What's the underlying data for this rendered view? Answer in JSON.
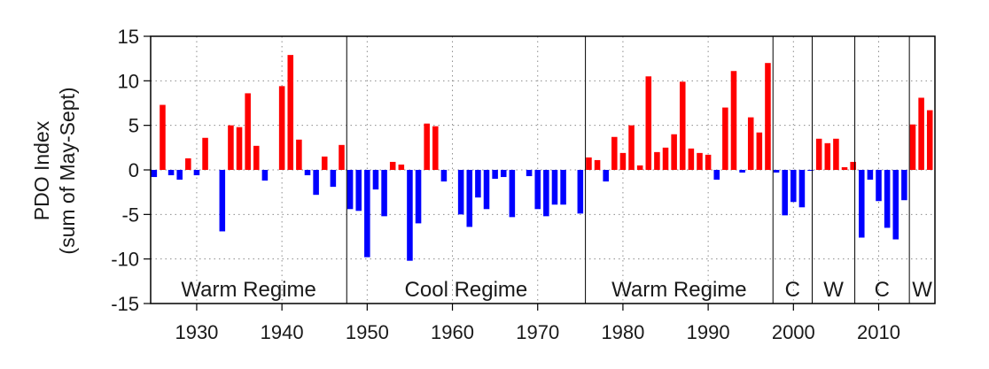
{
  "chart_data": {
    "type": "bar",
    "title": "",
    "xlabel": "",
    "ylabel": "PDO Index",
    "ylabel_sub": "(sum of May-Sept)",
    "xlim": [
      1924.6,
      2016.6
    ],
    "ylim": [
      -15,
      15
    ],
    "yticks": [
      15,
      10,
      5,
      0,
      -5,
      -10,
      -15
    ],
    "yticklabels": [
      "15",
      "10",
      "5",
      "0",
      "-5",
      "-10",
      "-15"
    ],
    "xticks": [
      1930,
      1940,
      1950,
      1960,
      1970,
      1980,
      1990,
      2000,
      2010
    ],
    "xticklabels": [
      "1930",
      "1940",
      "1950",
      "1960",
      "1970",
      "1980",
      "1990",
      "2000",
      "2010"
    ],
    "grid": "dotted",
    "colors": {
      "positive": "#ff0000",
      "negative": "#0000ff",
      "axis": "#000000"
    },
    "series": [
      {
        "name": "PDO Index (May-Sept sum)",
        "x": [
          1925,
          1926,
          1927,
          1928,
          1929,
          1930,
          1931,
          1932,
          1933,
          1934,
          1935,
          1936,
          1937,
          1938,
          1939,
          1940,
          1941,
          1942,
          1943,
          1944,
          1945,
          1946,
          1947,
          1948,
          1949,
          1950,
          1951,
          1952,
          1953,
          1954,
          1955,
          1956,
          1957,
          1958,
          1959,
          1960,
          1961,
          1962,
          1963,
          1964,
          1965,
          1966,
          1967,
          1968,
          1969,
          1970,
          1971,
          1972,
          1973,
          1974,
          1975,
          1976,
          1977,
          1978,
          1979,
          1980,
          1981,
          1982,
          1983,
          1984,
          1985,
          1986,
          1987,
          1988,
          1989,
          1990,
          1991,
          1992,
          1993,
          1994,
          1995,
          1996,
          1997,
          1998,
          1999,
          2000,
          2001,
          2002,
          2003,
          2004,
          2005,
          2006,
          2007,
          2008,
          2009,
          2010,
          2011,
          2012,
          2013,
          2014,
          2015,
          2016
        ],
        "values": [
          -0.8,
          7.3,
          -0.6,
          -1.1,
          1.3,
          -0.6,
          3.6,
          0.0,
          -6.9,
          5.0,
          4.8,
          8.6,
          2.7,
          -1.2,
          0.0,
          9.4,
          12.9,
          3.4,
          -0.6,
          -2.8,
          1.5,
          -1.9,
          2.8,
          -4.4,
          -4.6,
          -9.8,
          -2.2,
          -5.2,
          0.9,
          0.6,
          -10.2,
          -6.0,
          5.2,
          4.9,
          -1.3,
          0.0,
          -5.0,
          -6.4,
          -3.1,
          -4.4,
          -1.0,
          -0.8,
          -5.3,
          0.0,
          -0.7,
          -4.4,
          -5.2,
          -3.9,
          -3.9,
          0.0,
          -4.9,
          1.4,
          1.1,
          -1.3,
          3.7,
          1.9,
          5.0,
          0.5,
          10.5,
          2.0,
          2.5,
          4.0,
          9.9,
          2.4,
          1.9,
          1.7,
          -1.1,
          7.0,
          11.1,
          -0.3,
          5.9,
          4.2,
          12.0,
          -0.3,
          -5.1,
          -3.6,
          -4.2,
          -0.1,
          3.5,
          3.0,
          3.5,
          0.3,
          0.9,
          -7.6,
          -1.1,
          -3.5,
          -6.5,
          -7.8,
          -3.4,
          5.1,
          8.1,
          6.7
        ]
      }
    ],
    "regime_boundaries": [
      1947.6,
      1975.6,
      1997.6,
      2002.2,
      2007.2,
      2013.6
    ],
    "regimes": [
      {
        "label": "Warm Regime",
        "start": 1924.6,
        "end": 1947.6
      },
      {
        "label": "Cool Regime",
        "start": 1947.6,
        "end": 1975.6
      },
      {
        "label": "Warm Regime",
        "start": 1975.6,
        "end": 1997.6
      },
      {
        "label": "C",
        "start": 1997.6,
        "end": 2002.2
      },
      {
        "label": "W",
        "start": 2002.2,
        "end": 2007.2
      },
      {
        "label": "C",
        "start": 2007.2,
        "end": 2013.6
      },
      {
        "label": "W",
        "start": 2013.6,
        "end": 2016.6
      }
    ],
    "regime_label_y": -13.3
  }
}
